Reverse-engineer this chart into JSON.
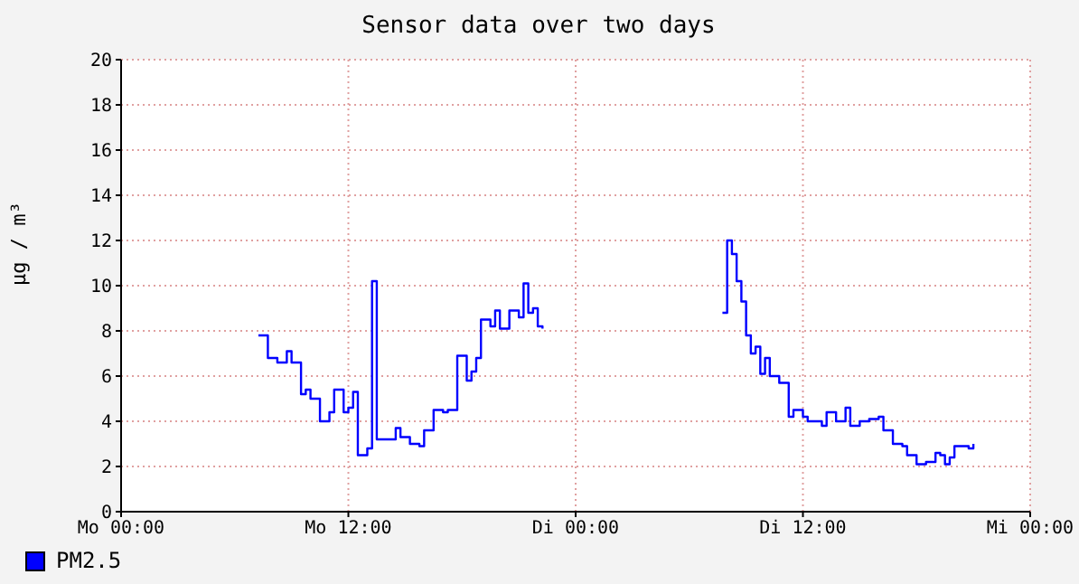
{
  "chart_data": {
    "type": "step",
    "title": "Sensor data over two days",
    "ylabel": "µg / m³",
    "categories": [
      "Mo 00:00",
      null,
      null,
      null,
      null,
      null,
      null,
      null,
      null,
      null,
      null,
      null,
      null,
      null,
      null,
      null,
      null,
      null,
      null,
      null,
      null,
      null,
      null,
      null,
      null,
      null,
      null,
      null,
      null,
      null,
      null,
      null,
      null,
      null,
      null,
      null,
      null,
      null,
      null,
      null,
      null,
      null,
      null,
      null,
      null,
      null,
      null,
      null,
      "Mo 12:00",
      null,
      null,
      null,
      null,
      null,
      null,
      null,
      null,
      null,
      null,
      null,
      null,
      null,
      null,
      null,
      null,
      null,
      null,
      null,
      null,
      null,
      null,
      null,
      null,
      null,
      null,
      null,
      null,
      null,
      null,
      null,
      null,
      null,
      null,
      null,
      null,
      null,
      null,
      null,
      null,
      null,
      null,
      null,
      null,
      null,
      null,
      null,
      "Di 00:00",
      null,
      null,
      null,
      null,
      null,
      null,
      null,
      null,
      null,
      null,
      null,
      null,
      null,
      null,
      null,
      null,
      null,
      null,
      null,
      null,
      null,
      null,
      null,
      null,
      null,
      null,
      null,
      null,
      null,
      null,
      null,
      null,
      null,
      null,
      null,
      null,
      null,
      null,
      null,
      null,
      null,
      null,
      null,
      null,
      null,
      null,
      null,
      "Di 12:00",
      null,
      null,
      null,
      null,
      null,
      null,
      null,
      null,
      null,
      null,
      null,
      null,
      null,
      null,
      null,
      null,
      null,
      null,
      null,
      null,
      null,
      null,
      null,
      null,
      null,
      null,
      null,
      null,
      null,
      null,
      null,
      null,
      null,
      null,
      null,
      null,
      null,
      null,
      null,
      null,
      null,
      null,
      null,
      null,
      null,
      null,
      null,
      "Mi 00:00"
    ],
    "series": [
      {
        "name": "PM2.5",
        "color": "#0000ff",
        "values": [
          null,
          null,
          null,
          null,
          null,
          null,
          null,
          null,
          null,
          null,
          null,
          null,
          null,
          null,
          null,
          null,
          null,
          null,
          null,
          null,
          null,
          null,
          null,
          null,
          null,
          null,
          null,
          null,
          null,
          7.8,
          7.8,
          6.8,
          6.8,
          6.6,
          6.6,
          7.1,
          6.6,
          6.6,
          5.2,
          5.4,
          5.0,
          5.0,
          4.0,
          4.0,
          4.4,
          5.4,
          5.4,
          4.4,
          4.6,
          5.3,
          2.5,
          2.5,
          2.8,
          10.2,
          3.2,
          3.2,
          3.2,
          3.2,
          3.7,
          3.3,
          3.3,
          3.0,
          3.0,
          2.9,
          3.6,
          3.6,
          4.5,
          4.5,
          4.4,
          4.5,
          4.5,
          6.9,
          6.9,
          5.8,
          6.2,
          6.8,
          8.5,
          8.5,
          8.2,
          8.9,
          8.1,
          8.1,
          8.9,
          8.9,
          8.6,
          10.1,
          8.8,
          9.0,
          8.2,
          8.1,
          null,
          null,
          null,
          null,
          null,
          null,
          null,
          null,
          null,
          null,
          null,
          null,
          null,
          null,
          null,
          null,
          null,
          null,
          null,
          null,
          null,
          null,
          null,
          null,
          null,
          null,
          null,
          null,
          null,
          null,
          null,
          null,
          null,
          null,
          null,
          null,
          null,
          8.8,
          12.0,
          11.4,
          10.2,
          9.3,
          7.8,
          7.0,
          7.3,
          6.1,
          6.8,
          6.0,
          6.0,
          5.7,
          5.7,
          4.2,
          4.5,
          4.5,
          4.2,
          4.0,
          4.0,
          4.0,
          3.8,
          4.4,
          4.4,
          4.0,
          4.0,
          4.6,
          3.8,
          3.8,
          4.0,
          4.0,
          4.1,
          4.1,
          4.2,
          3.6,
          3.6,
          3.0,
          3.0,
          2.9,
          2.5,
          2.5,
          2.1,
          2.1,
          2.2,
          2.2,
          2.6,
          2.5,
          2.1,
          2.4,
          2.9,
          2.9,
          2.9,
          2.8,
          3.0,
          null,
          null,
          null,
          null,
          null,
          null,
          null,
          null,
          null,
          null,
          null,
          null
        ]
      }
    ],
    "ylim": [
      0,
      20
    ],
    "yticks": [
      0,
      2,
      4,
      6,
      8,
      10,
      12,
      14,
      16,
      18,
      20
    ],
    "grid": true,
    "legend": "bottom left",
    "marker": "none",
    "line_style": "solid"
  }
}
